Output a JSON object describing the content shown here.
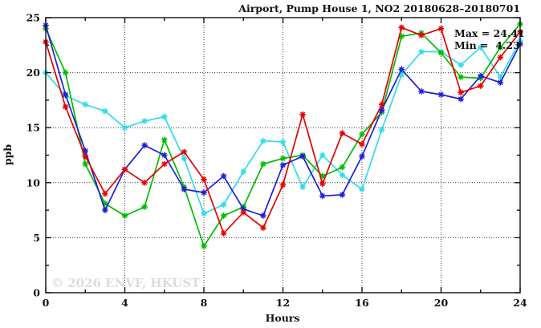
{
  "header": {
    "title": "Airport, Pump House 1, NO2 20180628–20180701"
  },
  "annotation": {
    "max_label": "Max = 24.41",
    "min_label": "Min =  4.23"
  },
  "watermark": "© 2026 ENVF, HKUST",
  "chart_data": {
    "type": "line",
    "title": "Airport, Pump House 1, NO2 20180628–20180701",
    "xlabel": "Hours",
    "ylabel": "ppb",
    "xlim": [
      0,
      24
    ],
    "ylim": [
      0,
      25
    ],
    "x_major_ticks": [
      0,
      4,
      8,
      12,
      16,
      20,
      24
    ],
    "x_minor_ticks": [
      2,
      6,
      10,
      14,
      18,
      22
    ],
    "y_major_ticks": [
      0,
      5,
      10,
      15,
      20,
      25
    ],
    "y_minor_ticks": [
      2.5,
      7.5,
      12.5,
      17.5,
      22.5
    ],
    "grid_x": [
      4,
      8,
      12,
      16,
      20
    ],
    "grid_y": [
      5,
      10,
      15,
      20
    ],
    "grid_style": "dotted",
    "legend_position": "none",
    "marker": "asterisk",
    "stats": {
      "max": 24.41,
      "min": 4.23
    },
    "x": [
      0,
      1,
      2,
      3,
      4,
      5,
      6,
      7,
      8,
      9,
      10,
      11,
      12,
      13,
      14,
      15,
      16,
      17,
      18,
      19,
      20,
      21,
      22,
      23,
      24
    ],
    "series": [
      {
        "name": "cyan",
        "color": "#30dce8",
        "values": [
          20.0,
          17.9,
          17.1,
          16.5,
          15.0,
          15.6,
          16.0,
          12.2,
          7.2,
          8.0,
          11.0,
          13.8,
          13.7,
          9.6,
          12.5,
          10.7,
          9.4,
          14.8,
          19.8,
          21.9,
          21.9,
          20.7,
          22.3,
          19.6,
          22.9
        ]
      },
      {
        "name": "green",
        "color": "#00bd00",
        "values": [
          24.0,
          20.0,
          11.7,
          8.1,
          7.0,
          7.8,
          13.9,
          9.6,
          4.23,
          7.0,
          7.8,
          11.7,
          12.2,
          12.5,
          10.6,
          11.4,
          14.4,
          16.4,
          23.3,
          23.6,
          21.8,
          19.6,
          19.5,
          22.3,
          24.41
        ]
      },
      {
        "name": "blue",
        "color": "#1f1fd6",
        "values": [
          24.3,
          18.0,
          12.9,
          7.5,
          11.2,
          13.4,
          12.5,
          9.4,
          9.1,
          10.6,
          7.6,
          7.0,
          11.6,
          12.4,
          8.8,
          8.9,
          12.4,
          16.6,
          20.3,
          18.3,
          18.0,
          17.6,
          19.7,
          19.1,
          22.6
        ]
      },
      {
        "name": "red",
        "color": "#e60000",
        "values": [
          22.8,
          16.9,
          12.4,
          9.0,
          11.2,
          10.0,
          11.7,
          12.8,
          10.3,
          5.4,
          7.3,
          5.9,
          9.8,
          16.2,
          9.9,
          14.5,
          13.5,
          17.1,
          24.1,
          23.4,
          24.0,
          18.2,
          18.8,
          21.4,
          23.7
        ]
      }
    ]
  }
}
